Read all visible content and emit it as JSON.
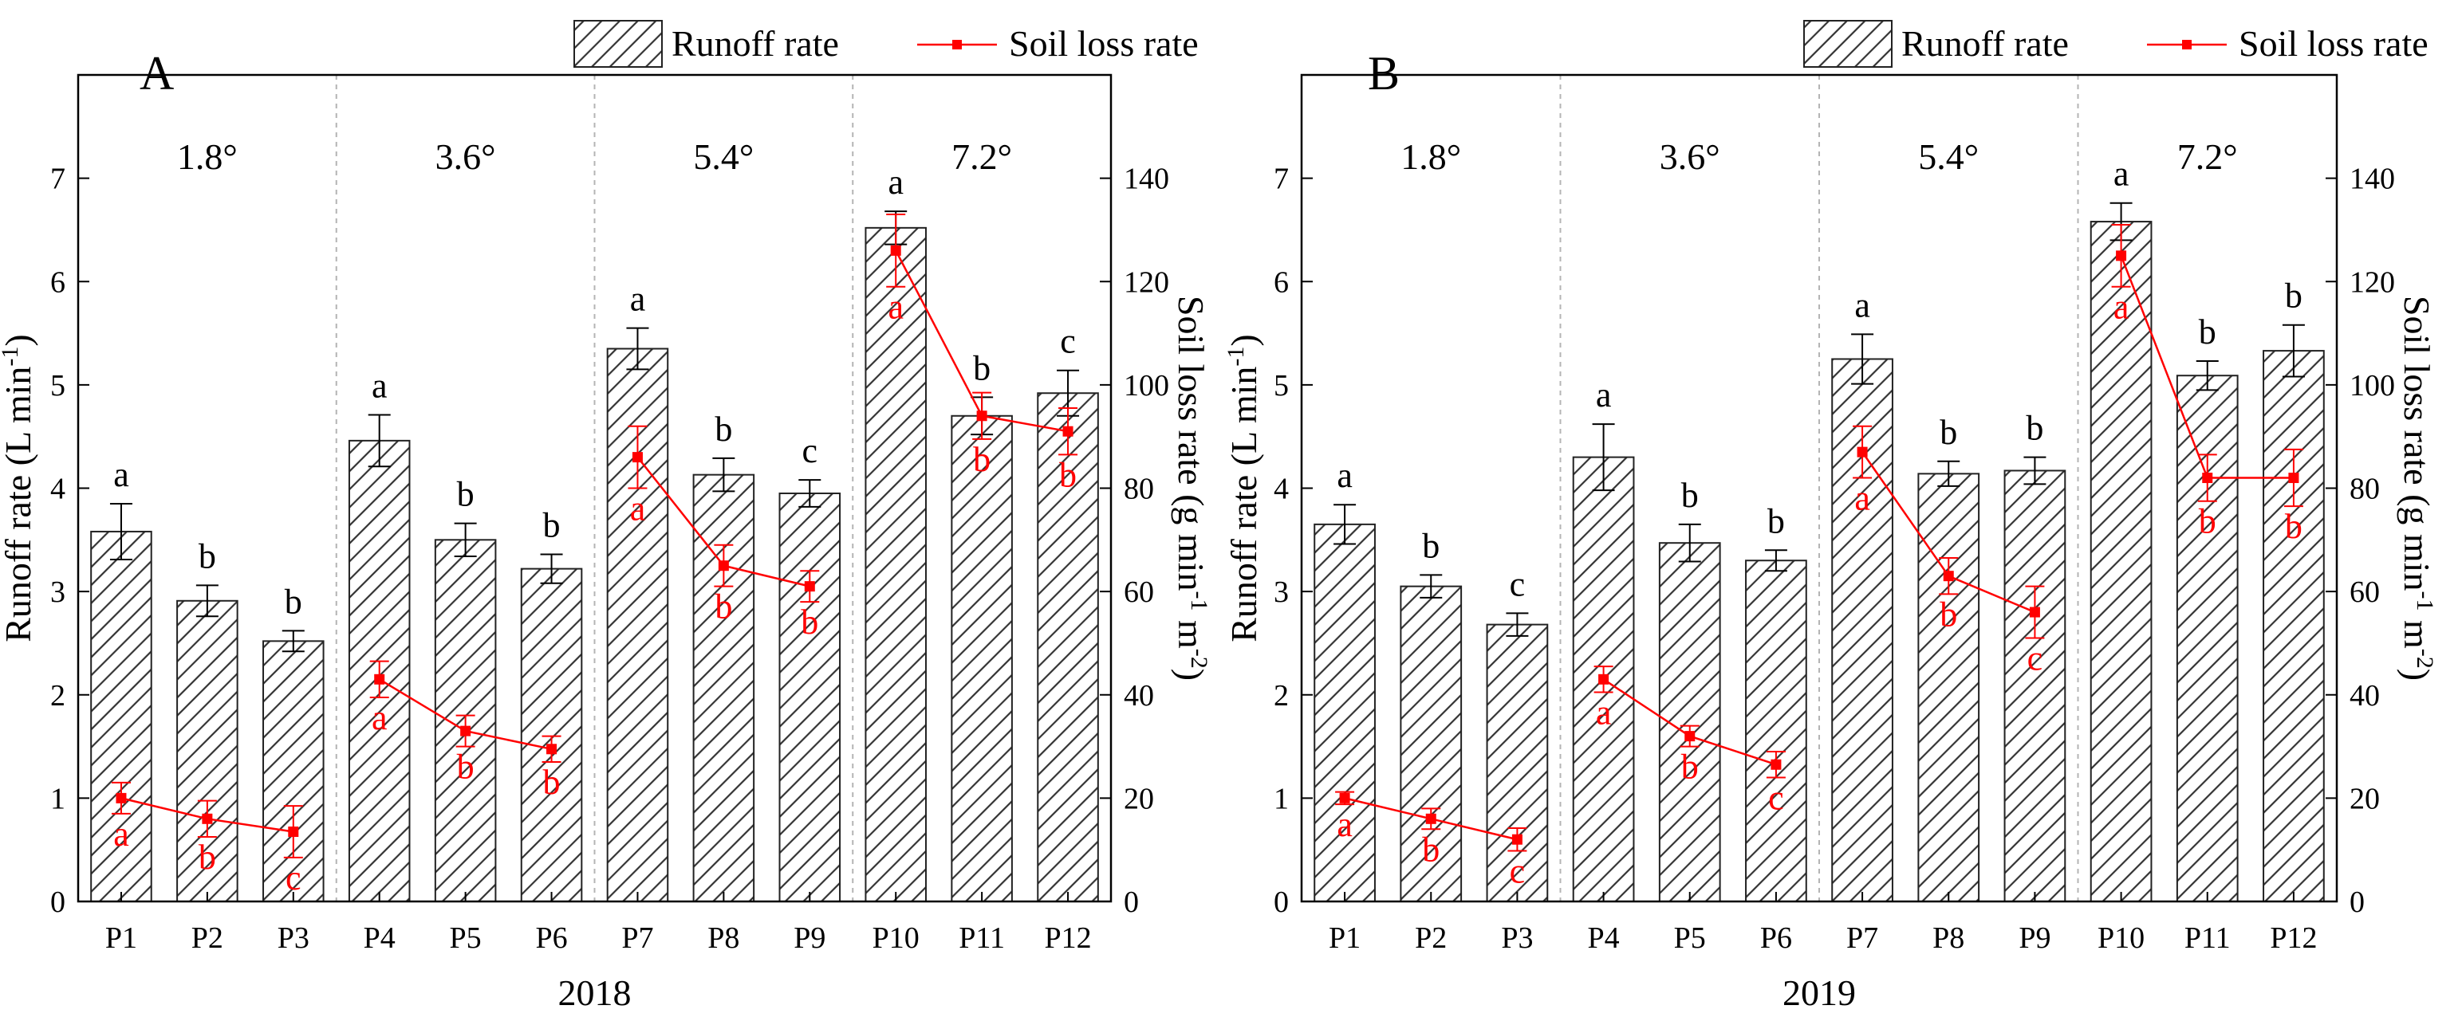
{
  "legend": {
    "runoff_label": "Runoff rate",
    "soil_label": "Soil loss rate"
  },
  "colors": {
    "bar_stroke": "#222222",
    "hatch": "#333333",
    "soil_line": "#ff0000",
    "divider": "#b4b4b4",
    "axis": "#000000"
  },
  "chart_data": [
    {
      "type": "bar",
      "panel": "A",
      "year_label": "2018",
      "categories": [
        "P1",
        "P2",
        "P3",
        "P4",
        "P5",
        "P6",
        "P7",
        "P8",
        "P9",
        "P10",
        "P11",
        "P12"
      ],
      "slope_groups": [
        {
          "label": "1.8°",
          "start": 0,
          "end": 2
        },
        {
          "label": "3.6°",
          "start": 3,
          "end": 5
        },
        {
          "label": "5.4°",
          "start": 6,
          "end": 8
        },
        {
          "label": "7.2°",
          "start": 9,
          "end": 11
        }
      ],
      "ylabel_left": "Runoff rate (L min",
      "ylabel_left_sup": "-1",
      "ylabel_left_end": ")",
      "ylabel_right": "Soil loss rate (g min",
      "ylabel_right_sup1": "-1",
      "ylabel_right_mid": " m",
      "ylabel_right_sup2": "-2",
      "ylabel_right_end": ")",
      "ylim_left": [
        0,
        8
      ],
      "yticks_left": [
        "0",
        "1",
        "2",
        "3",
        "4",
        "5",
        "6",
        "7"
      ],
      "ylim_right": [
        0,
        160
      ],
      "yticks_right": [
        "0",
        "20",
        "40",
        "60",
        "80",
        "100",
        "120",
        "140"
      ],
      "series": [
        {
          "name": "Runoff rate",
          "kind": "bar",
          "values": [
            3.58,
            2.91,
            2.52,
            4.46,
            3.5,
            3.22,
            5.35,
            4.13,
            3.95,
            6.52,
            4.7,
            4.92
          ],
          "errors": [
            0.27,
            0.15,
            0.1,
            0.25,
            0.16,
            0.14,
            0.2,
            0.16,
            0.13,
            0.16,
            0.18,
            0.22
          ],
          "letters": [
            "a",
            "b",
            "b",
            "a",
            "b",
            "b",
            "a",
            "b",
            "c",
            "a",
            "b",
            "c"
          ]
        },
        {
          "name": "Soil loss rate",
          "kind": "line",
          "values": [
            20,
            16,
            13.5,
            43,
            33,
            29.5,
            86,
            65,
            61,
            126,
            94,
            91
          ],
          "errors": [
            3,
            3.5,
            5,
            3.5,
            3,
            2.5,
            6,
            4,
            3,
            7,
            4.5,
            4.5
          ],
          "letters": [
            "a",
            "b",
            "c",
            "a",
            "b",
            "b",
            "a",
            "b",
            "b",
            "a",
            "b",
            "b"
          ]
        }
      ]
    },
    {
      "type": "bar",
      "panel": "B",
      "year_label": "2019",
      "categories": [
        "P1",
        "P2",
        "P3",
        "P4",
        "P5",
        "P6",
        "P7",
        "P8",
        "P9",
        "P10",
        "P11",
        "P12"
      ],
      "slope_groups": [
        {
          "label": "1.8°",
          "start": 0,
          "end": 2
        },
        {
          "label": "3.6°",
          "start": 3,
          "end": 5
        },
        {
          "label": "5.4°",
          "start": 6,
          "end": 8
        },
        {
          "label": "7.2°",
          "start": 9,
          "end": 11
        }
      ],
      "ylabel_left": "Runoff rate (L min",
      "ylabel_left_sup": "-1",
      "ylabel_left_end": ")",
      "ylabel_right": "Soil loss rate (g min",
      "ylabel_right_sup1": "-1",
      "ylabel_right_mid": " m",
      "ylabel_right_sup2": "-2",
      "ylabel_right_end": ")",
      "ylim_left": [
        0,
        8
      ],
      "yticks_left": [
        "0",
        "1",
        "2",
        "3",
        "4",
        "5",
        "6",
        "7"
      ],
      "ylim_right": [
        0,
        160
      ],
      "yticks_right": [
        "0",
        "20",
        "40",
        "60",
        "80",
        "100",
        "120",
        "140"
      ],
      "series": [
        {
          "name": "Runoff rate",
          "kind": "bar",
          "values": [
            3.65,
            3.05,
            2.68,
            4.3,
            3.47,
            3.3,
            5.25,
            4.14,
            4.17,
            6.58,
            5.09,
            5.33
          ],
          "errors": [
            0.19,
            0.11,
            0.11,
            0.32,
            0.18,
            0.1,
            0.24,
            0.12,
            0.13,
            0.18,
            0.14,
            0.25
          ],
          "letters": [
            "a",
            "b",
            "c",
            "a",
            "b",
            "b",
            "a",
            "b",
            "b",
            "a",
            "b",
            "b"
          ]
        },
        {
          "name": "Soil loss rate",
          "kind": "line",
          "values": [
            20,
            16,
            12,
            43,
            32,
            26.5,
            87,
            63,
            56,
            125,
            82,
            82
          ],
          "errors": [
            1.2,
            2,
            2.2,
            2.5,
            2,
            2.5,
            5,
            3.5,
            5,
            6,
            4.5,
            5.5
          ],
          "letters": [
            "a",
            "b",
            "c",
            "a",
            "b",
            "c",
            "a",
            "b",
            "c",
            "a",
            "b",
            "b"
          ]
        }
      ]
    }
  ]
}
